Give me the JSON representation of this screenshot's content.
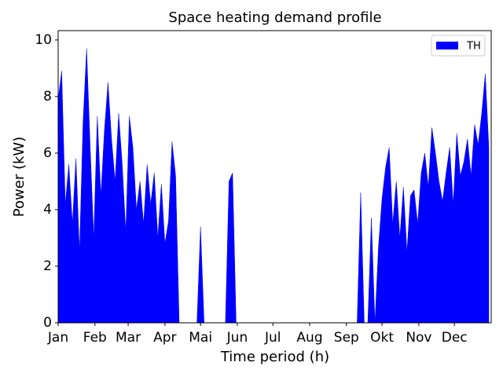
{
  "chart_data": {
    "type": "area",
    "title": "Space heating demand profile",
    "x_label": "Time period (h)",
    "y_label": "Power (kW)",
    "x": [
      0,
      72,
      144,
      216,
      288,
      360,
      432,
      504,
      576,
      648,
      720,
      792,
      864,
      936,
      1008,
      1080,
      1152,
      1224,
      1296,
      1368,
      1440,
      1512,
      1584,
      1656,
      1728,
      1800,
      1872,
      1944,
      2016,
      2088,
      2160,
      2232,
      2304,
      2376,
      2448,
      2520,
      2592,
      2664,
      2736,
      2808,
      2880,
      2952,
      3024,
      3096,
      3168,
      3240,
      3312,
      3384,
      3456,
      3528,
      3600,
      3672,
      3744,
      3816,
      3888,
      3960,
      4032,
      4104,
      4176,
      4248,
      4320,
      4392,
      4464,
      4536,
      4608,
      4680,
      4752,
      4824,
      4896,
      4968,
      5040,
      5112,
      5184,
      5256,
      5328,
      5400,
      5472,
      5544,
      5616,
      5688,
      5760,
      5832,
      5904,
      5976,
      6048,
      6120,
      6192,
      6264,
      6336,
      6408,
      6480,
      6552,
      6624,
      6696,
      6768,
      6840,
      6912,
      6984,
      7056,
      7128,
      7200,
      7272,
      7344,
      7416,
      7488,
      7560,
      7632,
      7704,
      7776,
      7848,
      7920,
      7992,
      8064,
      8136,
      8208,
      8280,
      8352,
      8424,
      8496,
      8568,
      8640,
      8712
    ],
    "series": [
      {
        "name": "TH",
        "color": "#0000ff",
        "values": [
          7.9,
          8.9,
          4.2,
          5.6,
          3.5,
          5.8,
          2.5,
          7.1,
          9.7,
          6.2,
          3.0,
          7.3,
          4.5,
          6.8,
          8.5,
          6.5,
          5.0,
          7.4,
          5.6,
          3.2,
          7.3,
          6.2,
          4.0,
          5.0,
          3.5,
          5.6,
          4.2,
          5.3,
          3.0,
          4.9,
          2.8,
          3.6,
          6.4,
          5.2,
          0,
          0,
          0,
          0,
          0,
          0,
          3.4,
          0,
          0,
          0,
          0,
          0,
          0,
          0,
          5.0,
          5.3,
          0,
          0,
          0,
          0,
          0,
          0,
          0,
          0,
          0,
          0,
          0,
          0,
          0,
          0,
          0,
          0,
          0,
          0,
          0,
          0,
          0,
          0,
          0,
          0,
          0,
          0,
          0,
          0,
          0,
          0,
          0,
          0,
          0,
          0,
          0,
          4.6,
          0,
          0,
          3.7,
          0,
          2.7,
          4.4,
          5.5,
          6.2,
          3.5,
          5.0,
          3.0,
          4.8,
          2.5,
          4.5,
          4.7,
          3.5,
          5.3,
          6.0,
          4.8,
          6.9,
          6.0,
          5.0,
          4.3,
          5.3,
          6.2,
          4.2,
          6.7,
          5.2,
          5.7,
          6.5,
          5.2,
          7.0,
          6.3,
          7.4,
          8.8,
          6.2
        ]
      }
    ],
    "xlim": [
      0,
      8760
    ],
    "ylim": [
      0,
      10.33
    ],
    "xticks": [
      {
        "value": 0,
        "label": "Jan"
      },
      {
        "value": 744,
        "label": "Feb"
      },
      {
        "value": 1416,
        "label": "Mar"
      },
      {
        "value": 2160,
        "label": "Apr"
      },
      {
        "value": 2880,
        "label": "Mai"
      },
      {
        "value": 3624,
        "label": "Jun"
      },
      {
        "value": 4344,
        "label": "Jul"
      },
      {
        "value": 5088,
        "label": "Aug"
      },
      {
        "value": 5832,
        "label": "Sep"
      },
      {
        "value": 6552,
        "label": "Okt"
      },
      {
        "value": 7296,
        "label": "Nov"
      },
      {
        "value": 8016,
        "label": "Dec"
      }
    ],
    "yticks": [
      0,
      2,
      4,
      6,
      8,
      10
    ],
    "legend": "upper right"
  }
}
